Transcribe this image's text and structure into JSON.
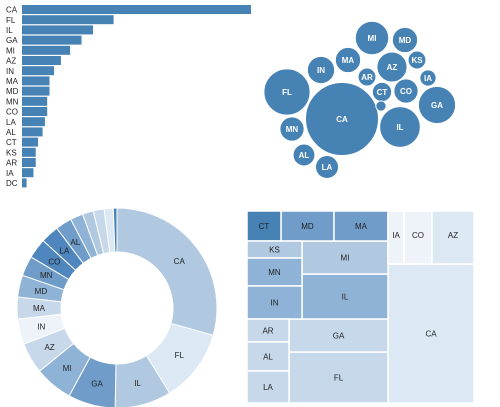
{
  "colors": {
    "bar": "#4682b4",
    "bubble": "#4682b4",
    "bubble_text": "#ffffff",
    "treemap_stroke": "#ffffff",
    "label_text": "#222222"
  },
  "chart_data": [
    {
      "type": "bar",
      "orientation": "horizontal",
      "categories": [
        "CA",
        "FL",
        "IL",
        "GA",
        "MI",
        "AZ",
        "IN",
        "MA",
        "MD",
        "MN",
        "CO",
        "LA",
        "AL",
        "CT",
        "KS",
        "AR",
        "IA",
        "DC"
      ],
      "values": [
        100,
        40,
        31,
        26,
        21,
        17,
        14,
        12,
        12,
        11,
        11,
        10,
        9,
        7,
        6,
        6,
        5,
        2
      ],
      "xlim": [
        0,
        100
      ]
    },
    {
      "type": "bubble",
      "categories": [
        "CA",
        "FL",
        "IL",
        "GA",
        "MI",
        "AZ",
        "IN",
        "MA",
        "MD",
        "MN",
        "CO",
        "LA",
        "AL",
        "CT",
        "KS",
        "AR",
        "IA",
        "DC"
      ],
      "values": [
        100,
        40,
        31,
        26,
        21,
        17,
        14,
        12,
        12,
        11,
        11,
        10,
        9,
        7,
        6,
        6,
        5,
        2
      ]
    },
    {
      "type": "pie",
      "style": "donut",
      "categories": [
        "CA",
        "FL",
        "IL",
        "GA",
        "MI",
        "AZ",
        "IN",
        "MA",
        "MD",
        "MN",
        "CO",
        "LA",
        "AL",
        "CT",
        "KS",
        "AR",
        "IA",
        "DC"
      ],
      "labeled": [
        "CA",
        "FL",
        "IL",
        "GA",
        "MI",
        "AZ",
        "IN",
        "MA",
        "MD",
        "MN",
        "CO",
        "LA",
        "AL"
      ],
      "values": [
        100,
        40,
        31,
        26,
        21,
        17,
        14,
        12,
        12,
        11,
        11,
        10,
        9,
        7,
        6,
        6,
        5,
        2
      ]
    },
    {
      "type": "treemap",
      "categories": [
        "CA",
        "FL",
        "GA",
        "IL",
        "MI",
        "MD",
        "MA",
        "CT",
        "KS",
        "MN",
        "IN",
        "AR",
        "AL",
        "LA",
        "IA",
        "CO",
        "AZ"
      ],
      "values": [
        100,
        40,
        26,
        31,
        21,
        12,
        12,
        7,
        6,
        11,
        14,
        6,
        9,
        10,
        5,
        11,
        17
      ]
    }
  ]
}
